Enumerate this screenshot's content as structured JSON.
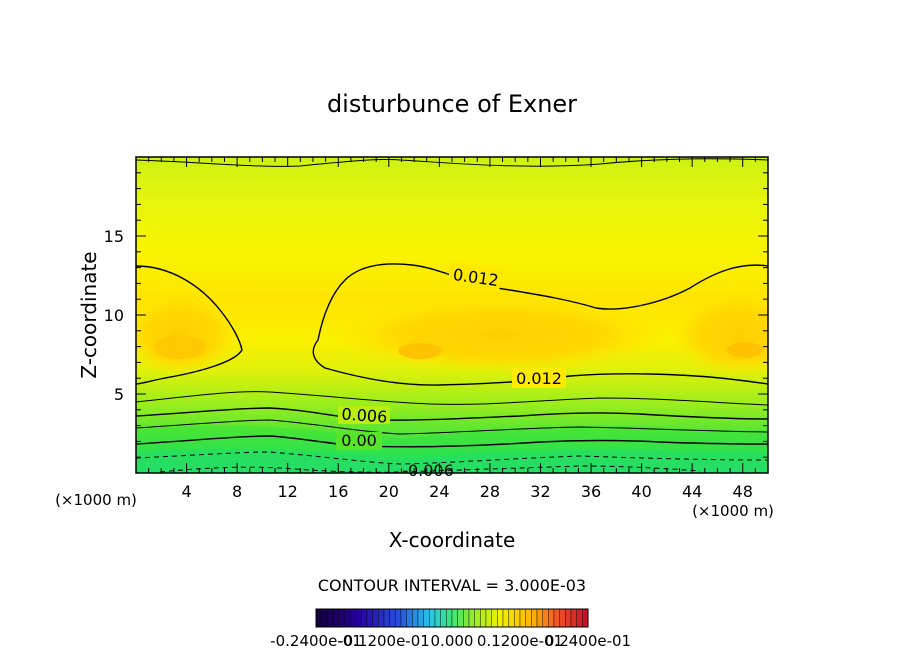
{
  "chart_data": {
    "type": "contour",
    "title": "disturbunce of Exner",
    "xlabel": "X-coordinate",
    "ylabel": "Z-coordinate",
    "x_unit_left": "(×1000 m)",
    "x_unit_right": "(×1000 m)",
    "xlim": [
      0,
      50
    ],
    "ylim": [
      0,
      20
    ],
    "x_ticks": [
      4,
      8,
      12,
      16,
      20,
      24,
      28,
      32,
      36,
      40,
      44,
      48
    ],
    "y_ticks": [
      5,
      10,
      15
    ],
    "contour_interval_text": "CONTOUR INTERVAL = 3.000E-03",
    "contour_labels": [
      {
        "text": "0.012",
        "x": 25,
        "z": 12.3
      },
      {
        "text": "0.012",
        "x": 31,
        "z": 6.0
      },
      {
        "text": "0.006",
        "x": 18,
        "z": 3.6
      },
      {
        "text": "0.00",
        "x": 17,
        "z": 2.0
      },
      {
        "text": "-0.006",
        "x": 23,
        "z": 0.1
      }
    ],
    "colorbar": {
      "tick_labels": [
        "-0.2400e-01",
        "-0.1200e-01",
        "0.000",
        "0.1200e-01",
        "0.2400e-01"
      ],
      "min": -0.024,
      "max": 0.024
    }
  }
}
